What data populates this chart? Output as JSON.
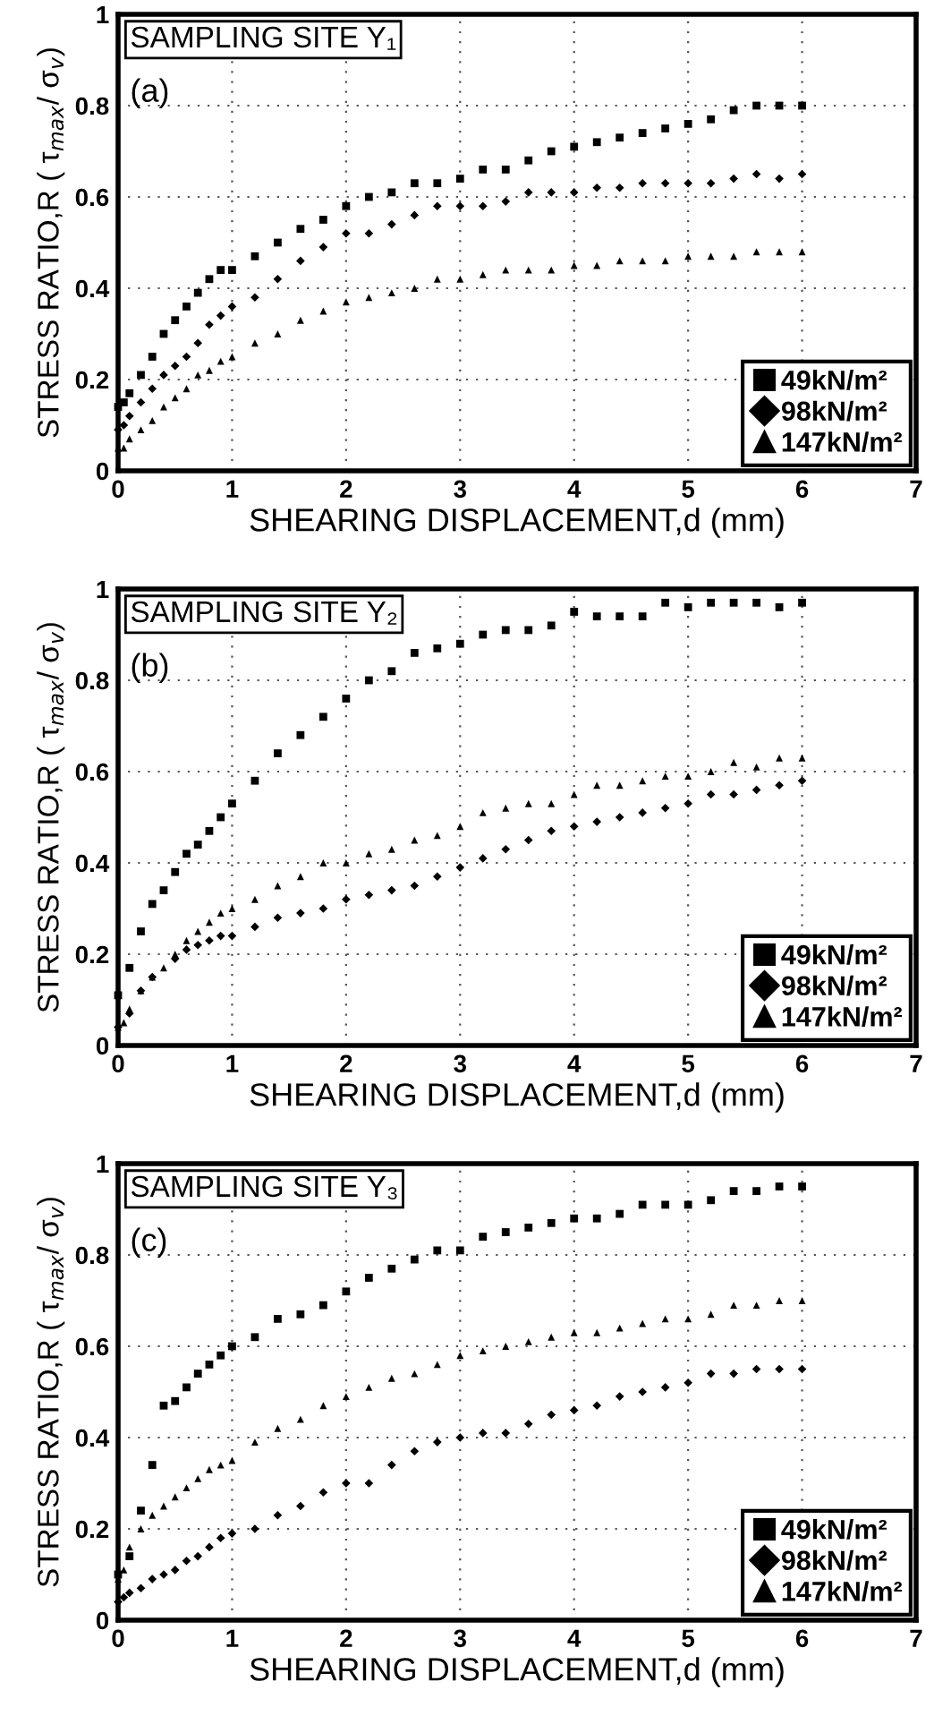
{
  "chart_data": [
    {
      "type": "scatter",
      "title": "SAMPLING SITE Y₁",
      "annotations": [
        "(a)"
      ],
      "xlabel": "SHEARING DISPLACEMENT,d (mm)",
      "ylabel": "STRESS RATIO,R ( τ$_{max}$/ σ$_{v}$)",
      "xlim": [
        0,
        7
      ],
      "xticks": [
        0,
        1,
        2,
        3,
        4,
        5,
        6,
        7
      ],
      "ylim": [
        0,
        1
      ],
      "yticks": [
        0,
        0.2,
        0.4,
        0.6,
        0.8,
        1
      ],
      "grid": true,
      "legend": "bottom right",
      "x": [
        0,
        0.05,
        0.1,
        0.2,
        0.3,
        0.4,
        0.5,
        0.6,
        0.7,
        0.8,
        0.9,
        1.0,
        1.2,
        1.4,
        1.6,
        1.8,
        2.0,
        2.2,
        2.4,
        2.6,
        2.8,
        3.0,
        3.2,
        3.4,
        3.6,
        3.8,
        4.0,
        4.2,
        4.4,
        4.6,
        4.8,
        5.0,
        5.2,
        5.4,
        5.6,
        5.8,
        6.0
      ],
      "series": [
        {
          "name": "49kN/m²",
          "color": "#000000",
          "marker": "square",
          "values": [
            0.14,
            0.15,
            0.17,
            0.21,
            0.25,
            0.3,
            0.33,
            0.36,
            0.39,
            0.42,
            0.44,
            0.44,
            0.47,
            0.5,
            0.53,
            0.55,
            0.58,
            0.6,
            0.61,
            0.63,
            0.63,
            0.64,
            0.66,
            0.66,
            0.68,
            0.7,
            0.71,
            0.72,
            0.73,
            0.74,
            0.75,
            0.76,
            0.77,
            0.79,
            0.8,
            0.8,
            0.8
          ]
        },
        {
          "name": "98kN/m²",
          "color": "#000000",
          "marker": "diamond",
          "values": [
            0.09,
            0.1,
            0.12,
            0.15,
            0.18,
            0.21,
            0.23,
            0.25,
            0.28,
            0.32,
            0.34,
            0.36,
            0.38,
            0.42,
            0.46,
            0.49,
            0.52,
            0.52,
            0.54,
            0.56,
            0.58,
            0.58,
            0.58,
            0.59,
            0.61,
            0.61,
            0.61,
            0.62,
            0.62,
            0.63,
            0.63,
            0.63,
            0.63,
            0.64,
            0.65,
            0.64,
            0.65
          ]
        },
        {
          "name": "147kN/m²",
          "color": "#000000",
          "marker": "triangle",
          "values": [
            0.05,
            0.05,
            0.07,
            0.09,
            0.11,
            0.14,
            0.16,
            0.18,
            0.21,
            0.22,
            0.24,
            0.25,
            0.28,
            0.3,
            0.33,
            0.35,
            0.37,
            0.38,
            0.39,
            0.4,
            0.42,
            0.42,
            0.43,
            0.44,
            0.44,
            0.44,
            0.45,
            0.45,
            0.46,
            0.46,
            0.46,
            0.47,
            0.47,
            0.47,
            0.48,
            0.48,
            0.48
          ]
        }
      ]
    },
    {
      "type": "scatter",
      "title": "SAMPLING SITE Y₂",
      "annotations": [
        "(b)"
      ],
      "xlabel": "SHEARING DISPLACEMENT,d (mm)",
      "ylabel": "STRESS RATIO,R ( τ$_{max}$/ σ$_{v}$)",
      "xlim": [
        0,
        7
      ],
      "xticks": [
        0,
        1,
        2,
        3,
        4,
        5,
        6,
        7
      ],
      "ylim": [
        0,
        1
      ],
      "yticks": [
        0,
        0.2,
        0.4,
        0.6,
        0.8,
        1
      ],
      "grid": true,
      "legend": "bottom right",
      "x": [
        0,
        0.05,
        0.1,
        0.2,
        0.3,
        0.4,
        0.5,
        0.6,
        0.7,
        0.8,
        0.9,
        1.0,
        1.2,
        1.4,
        1.6,
        1.8,
        2.0,
        2.2,
        2.4,
        2.6,
        2.8,
        3.0,
        3.2,
        3.4,
        3.6,
        3.8,
        4.0,
        4.2,
        4.4,
        4.6,
        4.8,
        5.0,
        5.2,
        5.4,
        5.6,
        5.8,
        6.0
      ],
      "series": [
        {
          "name": "49kN/m²",
          "color": "#000000",
          "marker": "square",
          "values": [
            0.11,
            null,
            0.17,
            0.25,
            0.31,
            0.34,
            0.38,
            0.42,
            0.44,
            0.47,
            0.5,
            0.53,
            0.58,
            0.64,
            0.68,
            0.72,
            0.76,
            0.8,
            0.82,
            0.86,
            0.87,
            0.88,
            0.9,
            0.91,
            0.91,
            0.92,
            0.95,
            0.94,
            0.94,
            0.94,
            0.97,
            0.96,
            0.97,
            0.97,
            0.97,
            0.96,
            0.97
          ]
        },
        {
          "name": "98kN/m²",
          "color": "#000000",
          "marker": "diamond",
          "values": [
            0.04,
            null,
            0.07,
            0.12,
            0.15,
            null,
            0.19,
            0.21,
            0.22,
            0.23,
            0.24,
            0.24,
            0.26,
            0.28,
            0.29,
            0.3,
            0.32,
            0.33,
            0.34,
            0.35,
            0.37,
            0.39,
            0.41,
            0.43,
            0.45,
            0.47,
            0.48,
            0.49,
            0.5,
            0.51,
            0.52,
            0.53,
            0.55,
            0.55,
            0.56,
            0.57,
            0.58
          ]
        },
        {
          "name": "147kN/m²",
          "color": "#000000",
          "marker": "triangle",
          "values": [
            0.04,
            0.05,
            0.08,
            0.12,
            0.15,
            0.17,
            0.2,
            0.23,
            0.25,
            0.27,
            0.29,
            0.3,
            0.32,
            0.35,
            0.37,
            0.4,
            0.4,
            0.42,
            0.43,
            0.45,
            0.46,
            0.48,
            0.51,
            0.52,
            0.53,
            0.53,
            0.55,
            0.57,
            0.57,
            0.58,
            0.59,
            0.59,
            0.6,
            0.62,
            0.61,
            0.63,
            0.63
          ]
        }
      ]
    },
    {
      "type": "scatter",
      "title": "SAMPLING SITE Y₃",
      "annotations": [
        "(c)"
      ],
      "xlabel": "SHEARING DISPLACEMENT,d (mm)",
      "ylabel": "STRESS RATIO,R ( τ$_{max}$/ σ$_{v}$)",
      "xlim": [
        0,
        7
      ],
      "xticks": [
        0,
        1,
        2,
        3,
        4,
        5,
        6,
        7
      ],
      "ylim": [
        0,
        1
      ],
      "yticks": [
        0,
        0.2,
        0.4,
        0.6,
        0.8,
        1
      ],
      "grid": true,
      "legend": "bottom right",
      "x": [
        0,
        0.05,
        0.1,
        0.2,
        0.3,
        0.4,
        0.5,
        0.6,
        0.7,
        0.8,
        0.9,
        1.0,
        1.2,
        1.4,
        1.6,
        1.8,
        2.0,
        2.2,
        2.4,
        2.6,
        2.8,
        3.0,
        3.2,
        3.4,
        3.6,
        3.8,
        4.0,
        4.2,
        4.4,
        4.6,
        4.8,
        5.0,
        5.2,
        5.4,
        5.6,
        5.8,
        6.0
      ],
      "series": [
        {
          "name": "49kN/m²",
          "color": "#000000",
          "marker": "square",
          "values": [
            0.1,
            null,
            0.14,
            0.24,
            0.34,
            0.47,
            0.48,
            0.51,
            0.54,
            0.56,
            0.58,
            0.6,
            0.62,
            0.66,
            0.67,
            0.69,
            0.72,
            0.75,
            0.77,
            0.79,
            0.81,
            0.81,
            0.84,
            0.85,
            0.86,
            0.87,
            0.88,
            0.88,
            0.89,
            0.91,
            0.91,
            0.91,
            0.92,
            0.94,
            0.94,
            0.95,
            0.95
          ]
        },
        {
          "name": "98kN/m²",
          "color": "#000000",
          "marker": "diamond",
          "values": [
            0.04,
            0.05,
            0.06,
            0.07,
            0.09,
            0.1,
            0.11,
            0.13,
            0.14,
            0.16,
            0.18,
            0.19,
            0.2,
            0.23,
            0.25,
            0.28,
            0.3,
            0.3,
            0.34,
            0.37,
            0.39,
            0.4,
            0.41,
            0.41,
            0.43,
            0.45,
            0.46,
            0.47,
            0.49,
            0.5,
            0.51,
            0.52,
            0.54,
            0.54,
            0.55,
            0.55,
            0.55
          ]
        },
        {
          "name": "147kN/m²",
          "color": "#000000",
          "marker": "triangle",
          "values": [
            0.09,
            0.11,
            0.16,
            0.2,
            0.23,
            0.25,
            0.27,
            0.29,
            0.31,
            0.33,
            0.34,
            0.35,
            0.39,
            0.42,
            0.44,
            0.47,
            0.49,
            0.51,
            0.53,
            0.54,
            0.56,
            0.58,
            0.59,
            0.6,
            0.61,
            0.62,
            0.63,
            0.63,
            0.64,
            0.65,
            0.66,
            0.66,
            0.67,
            0.69,
            0.69,
            0.7,
            0.7
          ]
        }
      ]
    }
  ]
}
